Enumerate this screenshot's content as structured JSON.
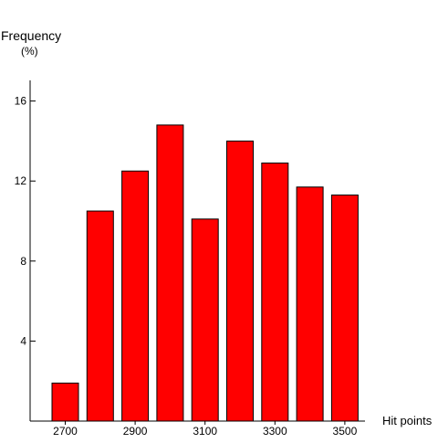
{
  "chart_data": {
    "type": "bar",
    "ylabel": "Frequency",
    "ylabel_unit": "(%)",
    "xlabel": "Hit points",
    "categories": [
      "2700",
      "2800",
      "2900",
      "3000",
      "3100",
      "3200",
      "3300",
      "3400",
      "3500"
    ],
    "values": [
      1.9,
      10.5,
      12.5,
      14.8,
      10.1,
      14.0,
      12.9,
      11.7,
      11.3
    ],
    "x_tick_labels": [
      "2700",
      "2900",
      "3100",
      "3300",
      "3500"
    ],
    "y_ticks": [
      4,
      8,
      12,
      16
    ],
    "ylim": [
      0,
      17
    ],
    "grid": false,
    "colors": {
      "bar_fill": "#ff0000",
      "bar_stroke": "#000000",
      "axis": "#000000"
    }
  }
}
